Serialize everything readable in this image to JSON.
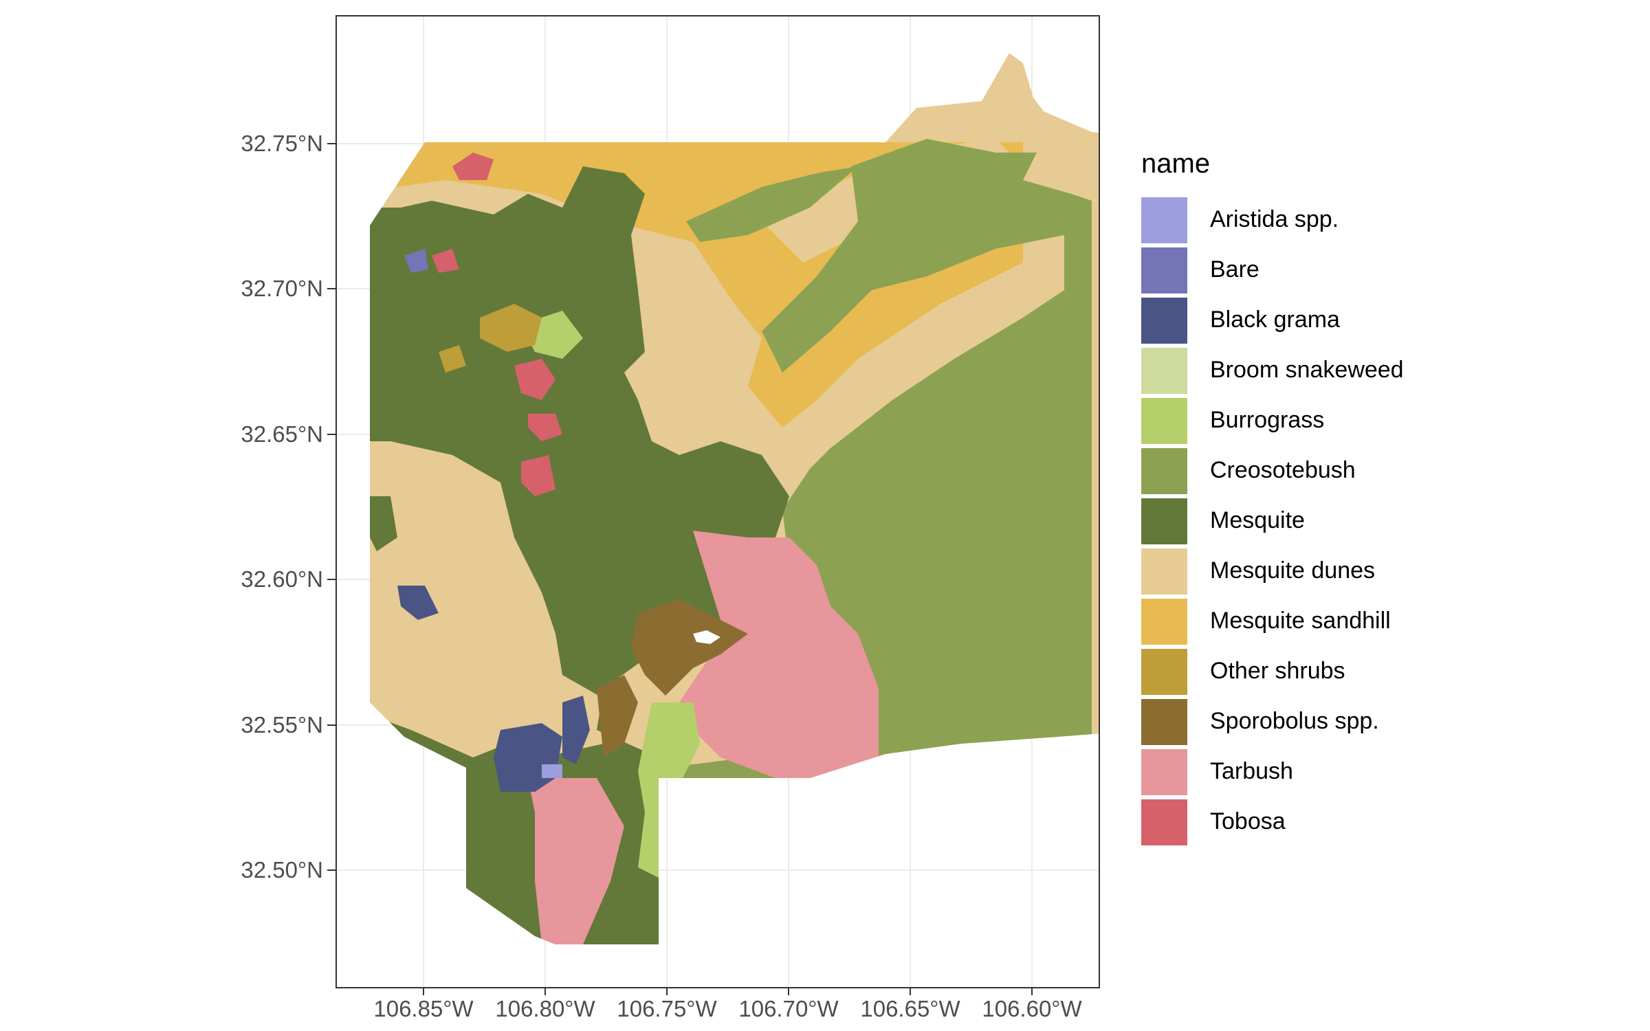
{
  "map": {
    "y_axis": {
      "ticks": [
        "32.75°N",
        "32.70°N",
        "32.65°N",
        "32.60°N",
        "32.55°N",
        "32.50°N"
      ],
      "values": [
        32.75,
        32.7,
        32.65,
        32.6,
        32.55,
        32.5
      ]
    },
    "x_axis": {
      "ticks": [
        "106.85°W",
        "106.80°W",
        "106.75°W",
        "106.70°W",
        "106.65°W",
        "106.60°W"
      ],
      "values": [
        -106.85,
        -106.8,
        -106.75,
        -106.7,
        -106.65,
        -106.6
      ]
    },
    "grid": true,
    "legend": {
      "title": "name",
      "placement": "right",
      "items": [
        {
          "label": "Aristida spp.",
          "color": "#9c9edd"
        },
        {
          "label": "Bare",
          "color": "#7375b5"
        },
        {
          "label": "Black grama",
          "color": "#4a5585"
        },
        {
          "label": "Broom snakeweed",
          "color": "#cedb9c"
        },
        {
          "label": "Burrograss",
          "color": "#b5cf6b"
        },
        {
          "label": "Creosotebush",
          "color": "#8ca252"
        },
        {
          "label": "Mesquite",
          "color": "#637939"
        },
        {
          "label": "Mesquite dunes",
          "color": "#e7cb94"
        },
        {
          "label": "Mesquite sandhill",
          "color": "#e7ba52"
        },
        {
          "label": "Other shrubs",
          "color": "#bd9e39"
        },
        {
          "label": "Sporobolus spp.",
          "color": "#8c6d31"
        },
        {
          "label": "Tarbush",
          "color": "#e7969c"
        },
        {
          "label": "Tobosa",
          "color": "#d6616b"
        }
      ]
    }
  }
}
